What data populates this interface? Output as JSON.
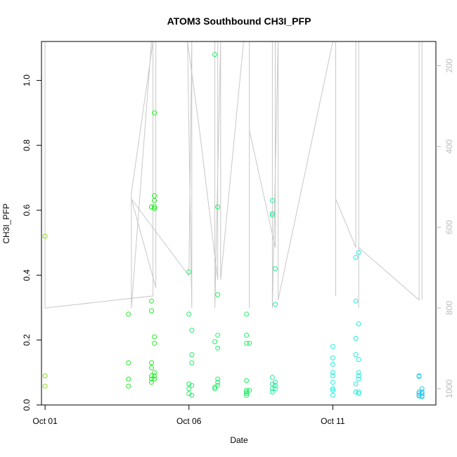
{
  "chart_data": {
    "type": "scatter",
    "title": "ATOM3 Southbound CH3I_PFP",
    "xlabel": "Date",
    "ylabel": "CH3I_PFP",
    "x_ticks": [
      {
        "day": 1,
        "label": "Oct 01"
      },
      {
        "day": 6,
        "label": "Oct 06"
      },
      {
        "day": 11,
        "label": "Oct 11"
      }
    ],
    "xlim": [
      "Sep 30 21:00",
      "Oct 14 14:00"
    ],
    "ylim": [
      0,
      1.12
    ],
    "y_ticks": [
      0.0,
      0.2,
      0.4,
      0.6,
      0.8,
      1.0
    ],
    "y_tick_labels": [
      "0.0",
      "0.2",
      "0.4",
      "0.6",
      "0.8",
      "1.0"
    ],
    "y2_ticks": [
      200,
      400,
      600,
      800,
      1000
    ],
    "y2_tick_labels": [
      "200",
      "400",
      "600",
      "800",
      "1000"
    ],
    "y2lim_top_to_bottom": [
      140,
      1040
    ],
    "y2_reversed": true,
    "colors": {
      "line": "#c8c8c8",
      "axis": "#000000",
      "axis_right": "#bbbbbb",
      "palette": [
        "#88dd22",
        "#22ee22",
        "#22ee66",
        "#22ee99",
        "#22eedd",
        "#22ccee",
        "#2299dd"
      ]
    },
    "series": [
      {
        "group": 0,
        "points": [
          [
            1.0,
            0.52
          ],
          [
            1.0,
            0.09
          ],
          [
            1.0,
            0.058
          ]
        ]
      },
      {
        "group": 1,
        "points": [
          [
            3.9,
            0.28
          ],
          [
            3.9,
            0.13
          ],
          [
            3.9,
            0.08
          ],
          [
            3.9,
            0.058
          ],
          [
            4.7,
            0.61
          ],
          [
            4.7,
            0.61
          ],
          [
            4.7,
            0.32
          ],
          [
            4.7,
            0.29
          ],
          [
            4.7,
            0.13
          ],
          [
            4.7,
            0.115
          ],
          [
            4.7,
            0.09
          ],
          [
            4.7,
            0.08
          ],
          [
            4.7,
            0.07
          ],
          [
            4.8,
            0.9
          ],
          [
            4.8,
            0.645
          ],
          [
            4.8,
            0.63
          ],
          [
            4.8,
            0.61
          ],
          [
            4.8,
            0.605
          ],
          [
            4.8,
            0.21
          ],
          [
            4.8,
            0.19
          ],
          [
            4.8,
            0.1
          ],
          [
            4.8,
            0.09
          ],
          [
            4.8,
            0.08
          ]
        ]
      },
      {
        "group": 2,
        "points": [
          [
            6.0,
            0.41
          ],
          [
            6.0,
            0.28
          ],
          [
            6.0,
            0.065
          ],
          [
            6.0,
            0.05
          ],
          [
            6.0,
            0.035
          ],
          [
            6.1,
            0.23
          ],
          [
            6.1,
            0.155
          ],
          [
            6.1,
            0.13
          ],
          [
            6.1,
            0.06
          ],
          [
            6.1,
            0.03
          ],
          [
            6.9,
            1.08
          ],
          [
            6.9,
            0.195
          ],
          [
            6.9,
            0.055
          ],
          [
            6.9,
            0.05
          ],
          [
            7.0,
            0.61
          ],
          [
            7.0,
            0.34
          ],
          [
            7.0,
            0.215
          ],
          [
            7.0,
            0.175
          ],
          [
            7.0,
            0.08
          ],
          [
            7.0,
            0.07
          ],
          [
            7.0,
            0.06
          ],
          [
            8.0,
            0.28
          ],
          [
            8.0,
            0.215
          ],
          [
            8.0,
            0.19
          ],
          [
            8.0,
            0.075
          ],
          [
            8.0,
            0.045
          ],
          [
            8.0,
            0.04
          ],
          [
            8.0,
            0.035
          ],
          [
            8.0,
            0.03
          ],
          [
            8.1,
            0.19
          ],
          [
            8.1,
            0.045
          ]
        ]
      },
      {
        "group": 3,
        "points": [
          [
            8.9,
            0.63
          ],
          [
            8.9,
            0.59
          ],
          [
            8.9,
            0.585
          ],
          [
            8.9,
            0.085
          ],
          [
            8.9,
            0.065
          ],
          [
            8.9,
            0.05
          ],
          [
            8.9,
            0.04
          ],
          [
            9.0,
            0.42
          ],
          [
            9.0,
            0.31
          ],
          [
            9.0,
            0.07
          ],
          [
            9.0,
            0.06
          ],
          [
            9.0,
            0.05
          ]
        ]
      },
      {
        "group": 4,
        "points": [
          [
            11.0,
            0.18
          ],
          [
            11.0,
            0.145
          ],
          [
            11.0,
            0.125
          ],
          [
            11.0,
            0.1
          ],
          [
            11.0,
            0.09
          ],
          [
            11.0,
            0.07
          ],
          [
            11.0,
            0.05
          ],
          [
            11.0,
            0.045
          ],
          [
            11.0,
            0.03
          ],
          [
            11.8,
            0.455
          ],
          [
            11.8,
            0.32
          ],
          [
            11.8,
            0.205
          ],
          [
            11.8,
            0.155
          ],
          [
            11.8,
            0.065
          ],
          [
            11.8,
            0.04
          ],
          [
            11.9,
            0.47
          ],
          [
            11.9,
            0.25
          ],
          [
            11.9,
            0.14
          ],
          [
            11.9,
            0.1
          ],
          [
            11.9,
            0.09
          ],
          [
            11.9,
            0.08
          ],
          [
            11.9,
            0.04
          ],
          [
            11.9,
            0.035
          ]
        ]
      },
      {
        "group": 5,
        "points": [
          [
            14.0,
            0.09
          ],
          [
            14.0,
            0.088
          ],
          [
            14.0,
            0.04
          ],
          [
            14.0,
            0.035
          ],
          [
            14.0,
            0.03
          ],
          [
            14.0,
            0.028
          ],
          [
            14.1,
            0.05
          ],
          [
            14.1,
            0.04
          ],
          [
            14.1,
            0.035
          ],
          [
            14.1,
            0.028
          ],
          [
            14.1,
            0.026
          ]
        ]
      }
    ],
    "pressure_track": [
      [
        1.0,
        140
      ],
      [
        1.0,
        800
      ],
      [
        4.75,
        770
      ],
      [
        4.75,
        140
      ],
      [
        4.0,
        515
      ],
      [
        4.0,
        800
      ],
      [
        4.7,
        140
      ],
      [
        4.85,
        140
      ],
      [
        4.85,
        750
      ],
      [
        4.0,
        530
      ],
      [
        6.0,
        720
      ],
      [
        6.1,
        140
      ],
      [
        6.1,
        800
      ],
      [
        5.95,
        140
      ],
      [
        6.35,
        350
      ],
      [
        7.0,
        730
      ],
      [
        7.0,
        140
      ],
      [
        6.9,
        140
      ],
      [
        6.9,
        800
      ],
      [
        7.1,
        140
      ],
      [
        7.1,
        730
      ],
      [
        7.9,
        140
      ],
      [
        8.1,
        140
      ],
      [
        8.1,
        800
      ],
      [
        8.1,
        360
      ],
      [
        9.0,
        650
      ],
      [
        9.0,
        140
      ],
      [
        8.9,
        140
      ],
      [
        8.9,
        800
      ],
      [
        9.1,
        140
      ],
      [
        9.1,
        780
      ],
      [
        11.0,
        140
      ],
      [
        11.1,
        140
      ],
      [
        11.1,
        770
      ],
      [
        11.1,
        530
      ],
      [
        11.8,
        650
      ],
      [
        11.8,
        140
      ],
      [
        11.9,
        140
      ],
      [
        11.9,
        800
      ],
      [
        11.9,
        650
      ],
      [
        14.0,
        780
      ],
      [
        14.0,
        140
      ],
      [
        14.1,
        140
      ],
      [
        14.1,
        780
      ]
    ]
  }
}
